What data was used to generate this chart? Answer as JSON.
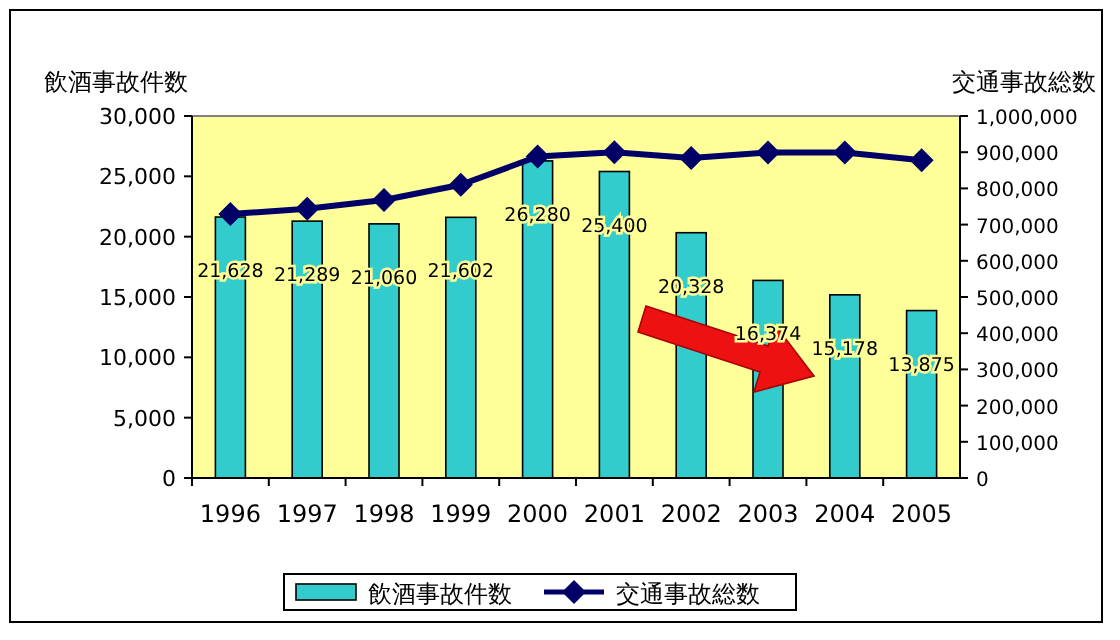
{
  "chart_data": {
    "type": "bar",
    "ylabel": "飲酒事故件数",
    "y2label": "交通事故総数",
    "categories": [
      "1996",
      "1997",
      "1998",
      "1999",
      "2000",
      "2001",
      "2002",
      "2003",
      "2004",
      "2005"
    ],
    "series": [
      {
        "name": "飲酒事故件数",
        "color": "#33cccc",
        "values": [
          21628,
          21289,
          21060,
          21602,
          26280,
          25400,
          20328,
          16374,
          15178,
          13875
        ],
        "value_labels": [
          "21,628",
          "21,289",
          "21,060",
          "21,602",
          "26,280",
          "25,400",
          "20,328",
          "16,374",
          "15,178",
          "13,875"
        ]
      },
      {
        "name": "交通事故総数",
        "type": "line",
        "axis": "y2",
        "color": "#000066",
        "marker": "diamond",
        "values": [
          729000,
          744000,
          768000,
          810000,
          888000,
          900000,
          884000,
          899000,
          899000,
          878000
        ]
      }
    ],
    "ylim": [
      0,
      30000
    ],
    "yticks": [
      {
        "value": 0,
        "label": "0"
      },
      {
        "value": 5000,
        "label": "5,000"
      },
      {
        "value": 10000,
        "label": "10,000"
      },
      {
        "value": 15000,
        "label": "15,000"
      },
      {
        "value": 20000,
        "label": "20,000"
      },
      {
        "value": 25000,
        "label": "25,000"
      },
      {
        "value": 30000,
        "label": "30,000"
      }
    ],
    "y2lim": [
      0,
      1000000
    ],
    "y2ticks": [
      {
        "value": 0,
        "label": "0"
      },
      {
        "value": 100000,
        "label": "100,000"
      },
      {
        "value": 200000,
        "label": "200,000"
      },
      {
        "value": 300000,
        "label": "300,000"
      },
      {
        "value": 400000,
        "label": "400,000"
      },
      {
        "value": 500000,
        "label": "500,000"
      },
      {
        "value": 600000,
        "label": "600,000"
      },
      {
        "value": 700000,
        "label": "700,000"
      },
      {
        "value": 800000,
        "label": "800,000"
      },
      {
        "value": 900000,
        "label": "900,000"
      },
      {
        "value": 1000000,
        "label": "1,000,000"
      }
    ],
    "legend": "bottom",
    "grid": false
  }
}
